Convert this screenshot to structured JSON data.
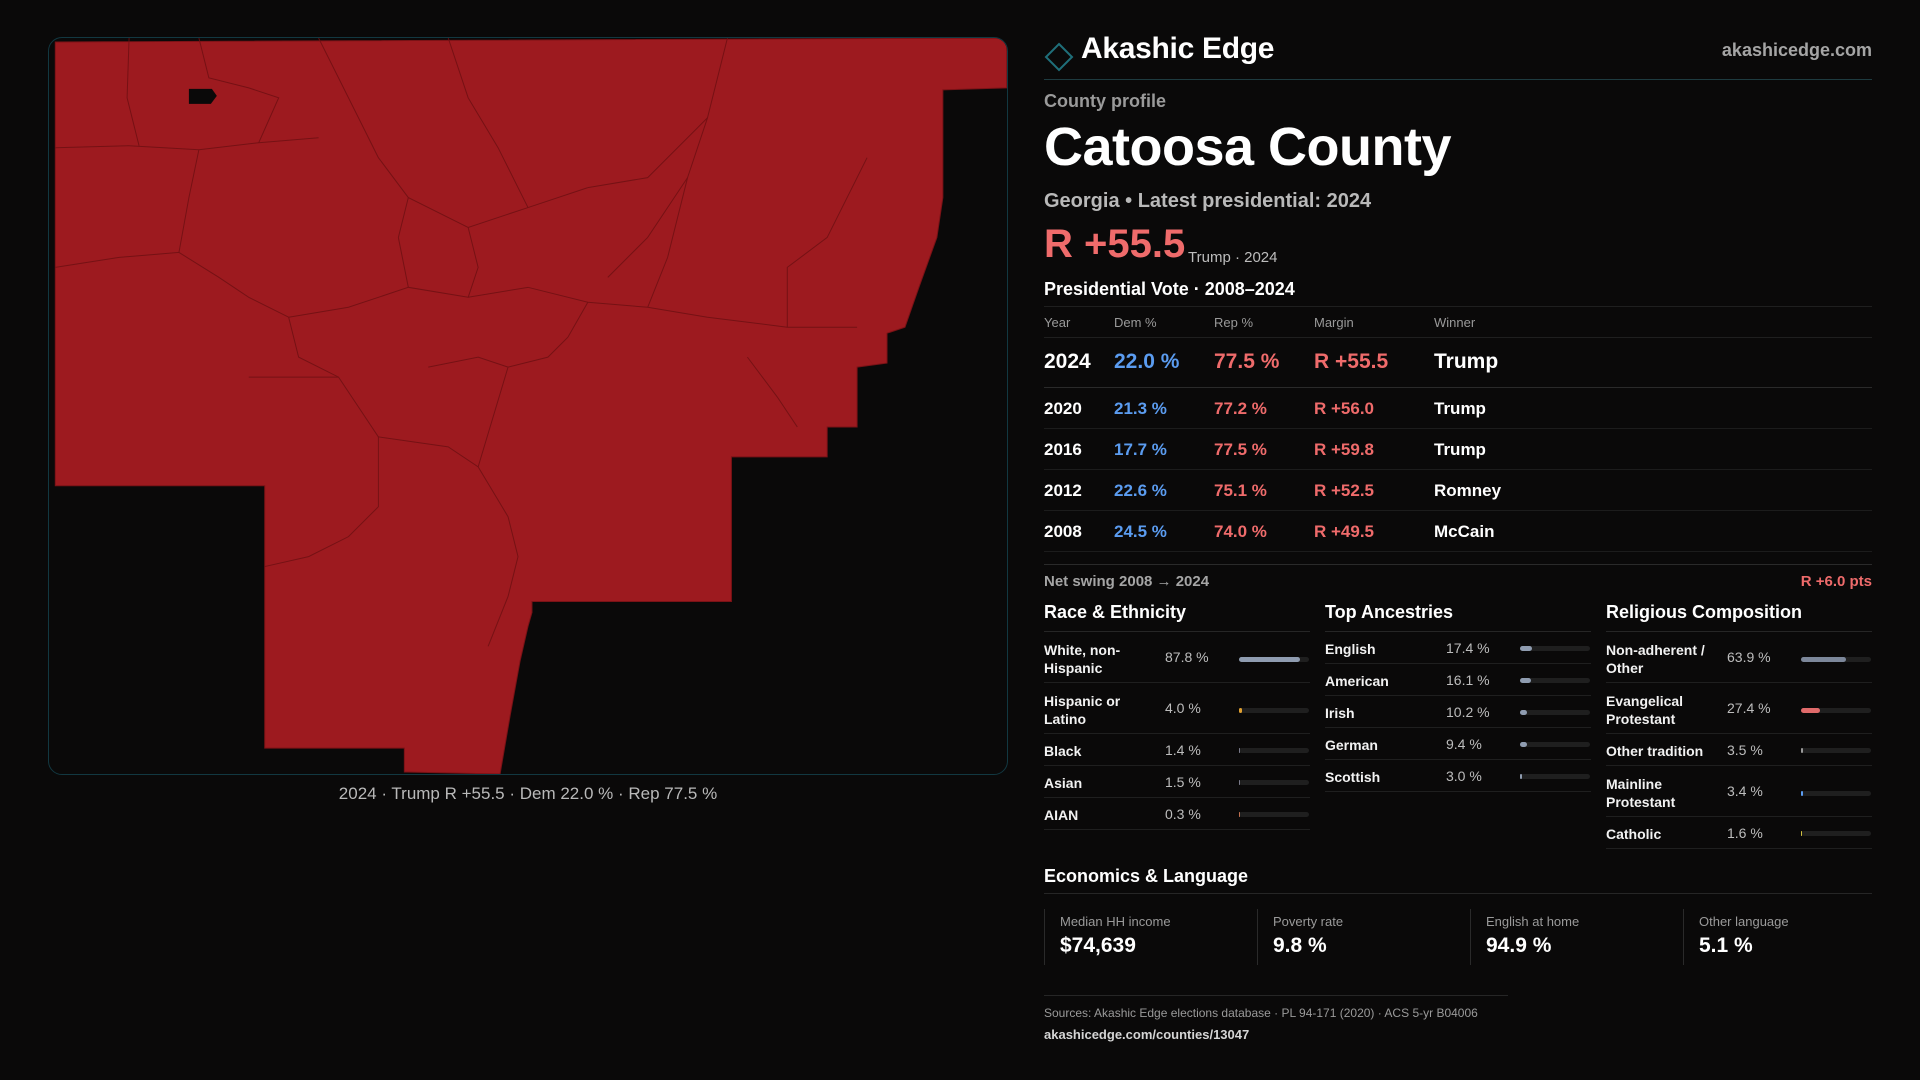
{
  "brand": {
    "name": "Akashic Edge",
    "url": "akashicedge.com",
    "accent": "#1f6f7a"
  },
  "county": {
    "eyebrow": "County profile",
    "name": "Catoosa County",
    "subtitle": "Georgia • Latest presidential: 2024",
    "margin": "R +55.5",
    "margin_note": "Trump · 2024"
  },
  "map": {
    "caption": "2024 · Trump R +55.5 · Dem 22.0 % · Rep 77.5 %",
    "fill_color": "#9d1a1f"
  },
  "vote": {
    "title": "Presidential Vote · 2008–2024",
    "headers": [
      "Year",
      "Dem %",
      "Rep %",
      "Margin",
      "Winner"
    ],
    "rows": [
      {
        "year": "2024",
        "dem": "22.0 %",
        "rep": "77.5 %",
        "margin": "R +55.5",
        "winner": "Trump"
      },
      {
        "year": "2020",
        "dem": "21.3 %",
        "rep": "77.2 %",
        "margin": "R +56.0",
        "winner": "Trump"
      },
      {
        "year": "2016",
        "dem": "17.7 %",
        "rep": "77.5 %",
        "margin": "R +59.8",
        "winner": "Trump"
      },
      {
        "year": "2012",
        "dem": "22.6 %",
        "rep": "75.1 %",
        "margin": "R +52.5",
        "winner": "Romney"
      },
      {
        "year": "2008",
        "dem": "24.5 %",
        "rep": "74.0 %",
        "margin": "R +49.5",
        "winner": "McCain"
      }
    ],
    "swing_label": "Net swing 2008 → 2024",
    "swing_value": "R +6.0 pts"
  },
  "race": {
    "title": "Race & Ethnicity",
    "items": [
      {
        "label": "White, non-Hispanic",
        "value": "87.8 %",
        "pct": 87.8,
        "color": "#8f9cb0"
      },
      {
        "label": "Hispanic or Latino",
        "value": "4.0 %",
        "pct": 4.0,
        "color": "#e0a030"
      },
      {
        "label": "Black",
        "value": "1.4 %",
        "pct": 1.4,
        "color": "#7a7a8a"
      },
      {
        "label": "Asian",
        "value": "1.5 %",
        "pct": 1.5,
        "color": "#7a7a8a"
      },
      {
        "label": "AIAN",
        "value": "0.3 %",
        "pct": 0.3,
        "color": "#c07050"
      }
    ]
  },
  "ancestry": {
    "title": "Top Ancestries",
    "items": [
      {
        "label": "English",
        "value": "17.4 %",
        "pct": 17.4,
        "color": "#8f9cb0"
      },
      {
        "label": "American",
        "value": "16.1 %",
        "pct": 16.1,
        "color": "#8f9cb0"
      },
      {
        "label": "Irish",
        "value": "10.2 %",
        "pct": 10.2,
        "color": "#8f9cb0"
      },
      {
        "label": "German",
        "value": "9.4 %",
        "pct": 9.4,
        "color": "#8f9cb0"
      },
      {
        "label": "Scottish",
        "value": "3.0 %",
        "pct": 3.0,
        "color": "#8f9cb0"
      }
    ]
  },
  "religion": {
    "title": "Religious Composition",
    "items": [
      {
        "label": "Non-adherent / Other",
        "value": "63.9 %",
        "pct": 63.9,
        "color": "#7c879a"
      },
      {
        "label": "Evangelical Protestant",
        "value": "27.4 %",
        "pct": 27.4,
        "color": "#e06a6a"
      },
      {
        "label": "Other tradition",
        "value": "3.5 %",
        "pct": 3.5,
        "color": "#9a9a9a"
      },
      {
        "label": "Mainline Protestant",
        "value": "3.4 %",
        "pct": 3.4,
        "color": "#5b9cf0"
      },
      {
        "label": "Catholic",
        "value": "1.6 %",
        "pct": 1.6,
        "color": "#d0c040"
      }
    ]
  },
  "economics": {
    "title": "Economics & Language",
    "items": [
      {
        "label": "Median HH income",
        "value": "$74,639"
      },
      {
        "label": "Poverty rate",
        "value": "9.8 %"
      },
      {
        "label": "English at home",
        "value": "94.9 %"
      },
      {
        "label": "Other language",
        "value": "5.1 %"
      }
    ]
  },
  "sources": {
    "text": "Sources: Akashic Edge elections database · PL 94-171 (2020) · ACS 5-yr B04006",
    "url": "akashicedge.com/counties/13047"
  }
}
